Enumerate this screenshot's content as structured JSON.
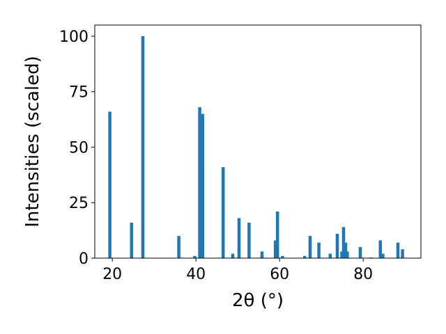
{
  "chart_data": {
    "type": "bar",
    "title": "",
    "xlabel": "2θ (°)",
    "ylabel": "Intensities (scaled)",
    "xlim": [
      15.8,
      93.8
    ],
    "ylim": [
      0,
      105
    ],
    "xticks": [
      20,
      40,
      60,
      80
    ],
    "yticks": [
      0,
      25,
      50,
      75,
      100
    ],
    "grid": false,
    "bar_color": "#1f77b4",
    "x": [
      19.4,
      24.6,
      27.3,
      35.9,
      39.7,
      40.9,
      41.6,
      46.5,
      48.8,
      50.3,
      52.7,
      55.8,
      59.0,
      59.5,
      60.7,
      66.0,
      67.3,
      69.4,
      72.1,
      73.8,
      74.9,
      75.3,
      75.8,
      76.2,
      79.3,
      81.8,
      84.1,
      84.7,
      88.3,
      89.4
    ],
    "values": [
      66,
      16,
      100,
      10,
      1,
      68,
      65,
      41,
      2,
      18,
      16,
      3,
      8,
      21,
      1,
      1,
      10,
      7,
      2,
      11,
      3,
      14,
      7,
      3,
      5,
      0.3,
      8,
      2,
      7,
      4
    ]
  }
}
